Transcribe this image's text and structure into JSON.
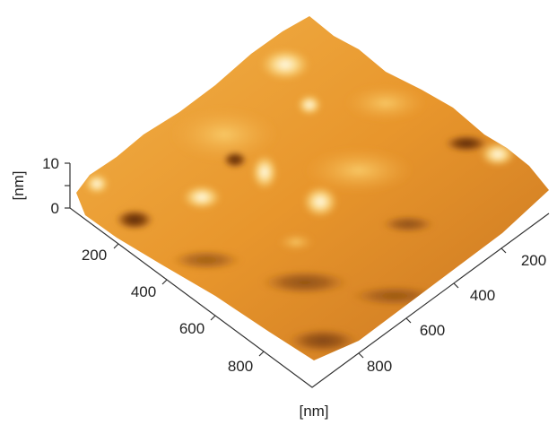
{
  "z_axis": {
    "label": "[nm]",
    "ticks": [
      "0",
      "10"
    ]
  },
  "left_axis": {
    "ticks": [
      "200",
      "400",
      "600",
      "800"
    ]
  },
  "right_axis": {
    "ticks": [
      "200",
      "400",
      "600",
      "800"
    ],
    "label": "[nm]"
  }
}
